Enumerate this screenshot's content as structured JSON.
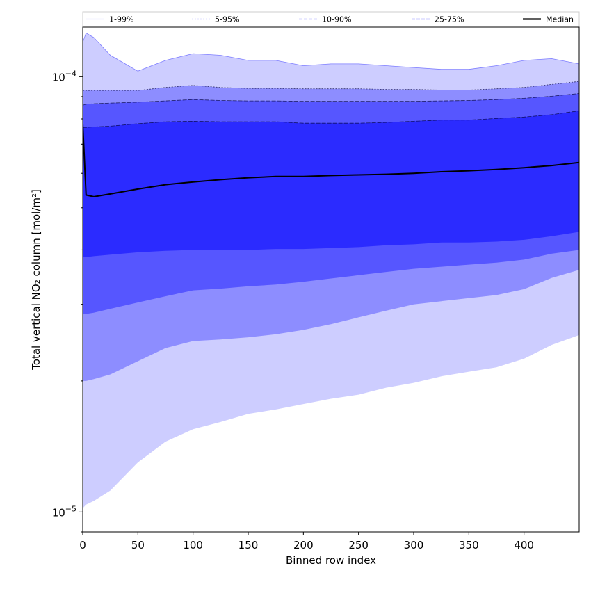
{
  "chart_data": {
    "type": "area",
    "xlabel": "Binned row index",
    "ylabel": "Total vertical NO₂ column [mol/m²]",
    "xlim": [
      0,
      450
    ],
    "ylim": [
      9e-06,
      0.00013
    ],
    "yscale": "log",
    "x_ticks": [
      0,
      50,
      100,
      150,
      200,
      250,
      300,
      350,
      400
    ],
    "x_tick_labels": [
      "0",
      "50",
      "100",
      "150",
      "200",
      "250",
      "300",
      "350",
      "400"
    ],
    "y_major_ticks": [
      {
        "value": 1e-05,
        "base": "10",
        "exp": "−5"
      },
      {
        "value": 0.0001,
        "base": "10",
        "exp": "−4"
      }
    ],
    "grid": false,
    "legend_placement": "top",
    "x": [
      0,
      3,
      10,
      25,
      50,
      75,
      100,
      125,
      150,
      175,
      200,
      225,
      250,
      275,
      300,
      325,
      350,
      375,
      400,
      425,
      450
    ],
    "bands": [
      {
        "name": "1-99%",
        "color": "#cdcdff",
        "lower": [
          1.02e-05,
          1.04e-05,
          1.06e-05,
          1.12e-05,
          1.3e-05,
          1.45e-05,
          1.55e-05,
          1.61e-05,
          1.68e-05,
          1.72e-05,
          1.77e-05,
          1.82e-05,
          1.86e-05,
          1.93e-05,
          1.98e-05,
          2.05e-05,
          2.1e-05,
          2.15e-05,
          2.25e-05,
          2.42e-05,
          2.55e-05
        ],
        "upper": [
          0.00012,
          0.000126,
          0.000123,
          0.000112,
          0.000103,
          0.000109,
          0.000113,
          0.000112,
          0.000109,
          0.000109,
          0.000106,
          0.000107,
          0.000107,
          0.000106,
          0.000105,
          0.000104,
          0.000104,
          0.000106,
          0.000109,
          0.00011,
          0.000107
        ]
      },
      {
        "name": "5-95%",
        "color": "#8d8dff",
        "lower": [
          2e-05,
          2e-05,
          2.02e-05,
          2.07e-05,
          2.22e-05,
          2.38e-05,
          2.47e-05,
          2.49e-05,
          2.52e-05,
          2.56e-05,
          2.62e-05,
          2.7e-05,
          2.8e-05,
          2.9e-05,
          3e-05,
          3.05e-05,
          3.1e-05,
          3.15e-05,
          3.25e-05,
          3.45e-05,
          3.6e-05
        ],
        "upper": [
          9.3e-05,
          9.3e-05,
          9.3e-05,
          9.3e-05,
          9.3e-05,
          9.45e-05,
          9.55e-05,
          9.45e-05,
          9.4e-05,
          9.4e-05,
          9.38e-05,
          9.38e-05,
          9.38e-05,
          9.35e-05,
          9.35e-05,
          9.32e-05,
          9.32e-05,
          9.38e-05,
          9.45e-05,
          9.6e-05,
          9.75e-05
        ]
      },
      {
        "name": "10-90%",
        "color": "#5656ff",
        "lower": [
          2.85e-05,
          2.85e-05,
          2.87e-05,
          2.93e-05,
          3.03e-05,
          3.13e-05,
          3.23e-05,
          3.26e-05,
          3.3e-05,
          3.33e-05,
          3.38e-05,
          3.44e-05,
          3.5e-05,
          3.56e-05,
          3.62e-05,
          3.66e-05,
          3.7e-05,
          3.74e-05,
          3.8e-05,
          3.92e-05,
          4e-05
        ],
        "upper": [
          8.6e-05,
          8.65e-05,
          8.67e-05,
          8.7e-05,
          8.74e-05,
          8.8e-05,
          8.86e-05,
          8.82e-05,
          8.8e-05,
          8.8e-05,
          8.78e-05,
          8.78e-05,
          8.78e-05,
          8.78e-05,
          8.78e-05,
          8.8e-05,
          8.82e-05,
          8.86e-05,
          8.92e-05,
          9.02e-05,
          9.15e-05
        ]
      },
      {
        "name": "25-75%",
        "color": "#2b2bff",
        "lower": [
          3.85e-05,
          3.85e-05,
          3.87e-05,
          3.9e-05,
          3.95e-05,
          3.98e-05,
          4e-05,
          4e-05,
          4e-05,
          4.02e-05,
          4.02e-05,
          4.04e-05,
          4.06e-05,
          4.1e-05,
          4.12e-05,
          4.16e-05,
          4.16e-05,
          4.18e-05,
          4.22e-05,
          4.3e-05,
          4.4e-05
        ],
        "upper": [
          7.65e-05,
          7.65e-05,
          7.67e-05,
          7.7e-05,
          7.8e-05,
          7.88e-05,
          7.9e-05,
          7.88e-05,
          7.88e-05,
          7.88e-05,
          7.82e-05,
          7.82e-05,
          7.82e-05,
          7.85e-05,
          7.9e-05,
          7.95e-05,
          7.95e-05,
          8.02e-05,
          8.08e-05,
          8.18e-05,
          8.35e-05
        ]
      }
    ],
    "median": {
      "name": "Median",
      "color": "#000000",
      "values": [
        7.8e-05,
        5.35e-05,
        5.3e-05,
        5.38e-05,
        5.52e-05,
        5.65e-05,
        5.73e-05,
        5.8e-05,
        5.86e-05,
        5.9e-05,
        5.9e-05,
        5.93e-05,
        5.95e-05,
        5.97e-05,
        6e-05,
        6.05e-05,
        6.08e-05,
        6.12e-05,
        6.18e-05,
        6.25e-05,
        6.35e-05
      ]
    },
    "legend": [
      {
        "label": "1-99%",
        "color": "#cdcdff",
        "dash": "solid"
      },
      {
        "label": "5-95%",
        "color": "#8d8dff",
        "dash": "dotted"
      },
      {
        "label": "10-90%",
        "color": "#5656ff",
        "dash": "dashed"
      },
      {
        "label": "25-75%",
        "color": "#2b2bff",
        "dash": "dashed"
      },
      {
        "label": "Median",
        "color": "#000000",
        "dash": "solid"
      }
    ]
  }
}
